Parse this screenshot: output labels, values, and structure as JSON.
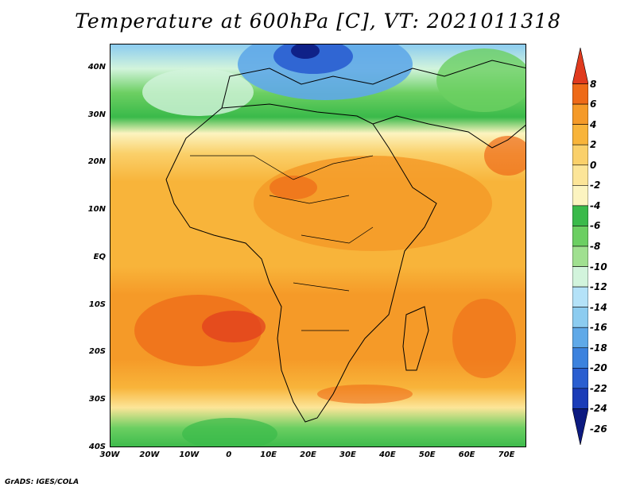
{
  "title": "Temperature at 600hPa [C], VT: 2021011318",
  "credit": "GrADS: IGES/COLA",
  "map": {
    "lat_labels": [
      "40N",
      "30N",
      "20N",
      "10N",
      "EQ",
      "10S",
      "20S",
      "30S",
      "40S"
    ],
    "lat_values": [
      40,
      30,
      20,
      10,
      0,
      -10,
      -20,
      -30,
      -40
    ],
    "lon_labels": [
      "30W",
      "20W",
      "10W",
      "0",
      "10E",
      "20E",
      "30E",
      "40E",
      "50E",
      "60E",
      "70E"
    ],
    "lon_values": [
      -30,
      -20,
      -10,
      0,
      10,
      20,
      30,
      40,
      50,
      60,
      70
    ],
    "extent": {
      "lon_min": -30,
      "lon_max": 75,
      "lat_min": -40,
      "lat_max": 45
    }
  },
  "colorbar": {
    "labels": [
      "8",
      "6",
      "4",
      "2",
      "0",
      "-2",
      "-4",
      "-6",
      "-8",
      "-10",
      "-12",
      "-14",
      "-16",
      "-18",
      "-20",
      "-22",
      "-24",
      "-26"
    ],
    "colors": [
      "#e03a1e",
      "#ee6a18",
      "#f59a28",
      "#f8b43a",
      "#fad06a",
      "#fce598",
      "#fcf4c0",
      "#3aba4a",
      "#6ccf62",
      "#a0e090",
      "#d2f4dc",
      "#b4e2f8",
      "#8cccf0",
      "#5fa9e8",
      "#3c82de",
      "#2a5ed0",
      "#1a3cb8",
      "#0c1a80"
    ]
  }
}
